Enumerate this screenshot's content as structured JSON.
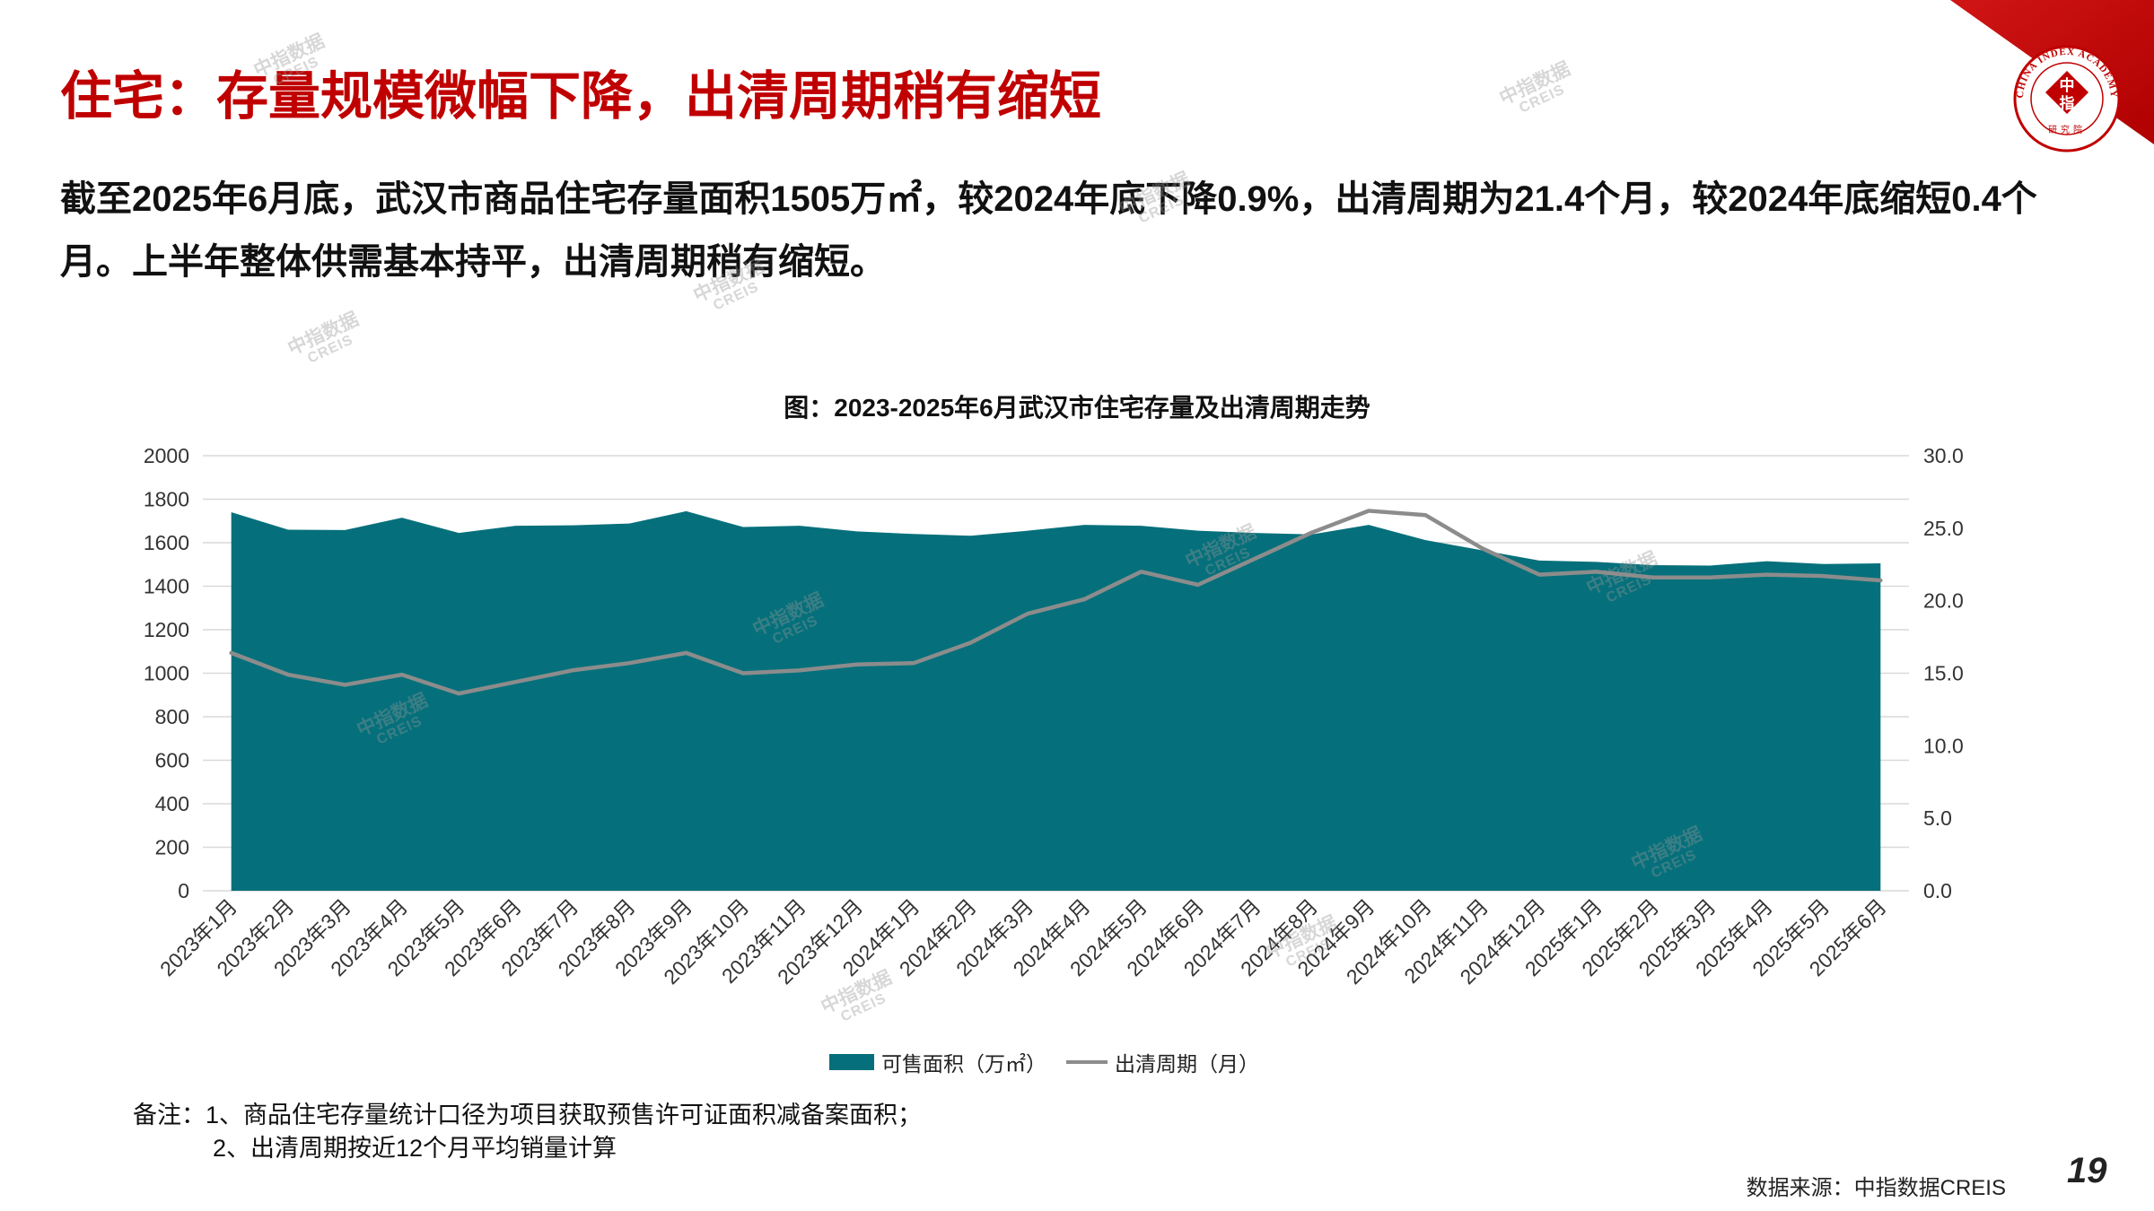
{
  "slide": {
    "title": "住宅：存量规模微幅下降，出清周期稍有缩短",
    "summary": "截至2025年6月底，武汉市商品住宅存量面积1505万㎡，较2024年底下降0.9%，出清周期为21.4个月，较2024年底缩短0.4个月。上半年整体供需基本持平，出清周期稍有缩短。",
    "page_number": "19"
  },
  "logo": {
    "ring_text": "CHINA INDEX ACADEMY",
    "center_top": "中",
    "center_bottom": "指",
    "bottom_text": "研究院"
  },
  "watermark": {
    "line1": "中指数据",
    "line2": "CREIS"
  },
  "notes": {
    "line1": "备注：1、商品住宅存量统计口径为项目获取预售许可证面积减备案面积；",
    "line2": "2、出清周期按近12个月平均销量计算"
  },
  "source": "数据来源：中指数据CREIS",
  "colors": {
    "title": "#C00000",
    "accent": "#C00000",
    "area": "#05707B",
    "line": "#8C8C8C",
    "grid": "#D9D9D9"
  },
  "chart_data": {
    "type": "area",
    "title": "图：2023-2025年6月武汉市住宅存量及出清周期走势",
    "categories": [
      "2023年1月",
      "2023年2月",
      "2023年3月",
      "2023年4月",
      "2023年5月",
      "2023年6月",
      "2023年7月",
      "2023年8月",
      "2023年9月",
      "2023年10月",
      "2023年11月",
      "2023年12月",
      "2024年1月",
      "2024年2月",
      "2024年3月",
      "2024年4月",
      "2024年5月",
      "2024年6月",
      "2024年7月",
      "2024年8月",
      "2024年9月",
      "2024年10月",
      "2024年11月",
      "2024年12月",
      "2025年1月",
      "2025年2月",
      "2025年3月",
      "2025年4月",
      "2025年5月",
      "2025年6月"
    ],
    "series": [
      {
        "name": "可售面积（万㎡）",
        "type": "area",
        "axis": "left",
        "values": [
          1740,
          1660,
          1658,
          1715,
          1645,
          1678,
          1680,
          1688,
          1745,
          1672,
          1678,
          1652,
          1640,
          1632,
          1655,
          1682,
          1678,
          1655,
          1645,
          1638,
          1682,
          1612,
          1565,
          1518,
          1512,
          1497,
          1495,
          1515,
          1502,
          1505
        ]
      },
      {
        "name": "出清周期（月）",
        "type": "line",
        "axis": "right",
        "values": [
          16.4,
          14.9,
          14.2,
          14.9,
          13.6,
          14.4,
          15.2,
          15.7,
          16.4,
          15.0,
          15.2,
          15.6,
          15.7,
          17.1,
          19.1,
          20.1,
          22.0,
          21.1,
          22.9,
          24.7,
          26.2,
          25.9,
          23.6,
          21.8,
          22.0,
          21.6,
          21.6,
          21.8,
          21.7,
          21.4
        ]
      }
    ],
    "y_left": {
      "range": [
        0,
        2000
      ],
      "ticks": [
        "0",
        "200",
        "400",
        "600",
        "800",
        "1000",
        "1200",
        "1400",
        "1600",
        "1800",
        "2000"
      ]
    },
    "y_right": {
      "range": [
        0,
        30
      ],
      "ticks": [
        "0.0",
        "5.0",
        "10.0",
        "15.0",
        "20.0",
        "25.0",
        "30.0"
      ]
    },
    "grid": true,
    "legend": "bottom"
  }
}
